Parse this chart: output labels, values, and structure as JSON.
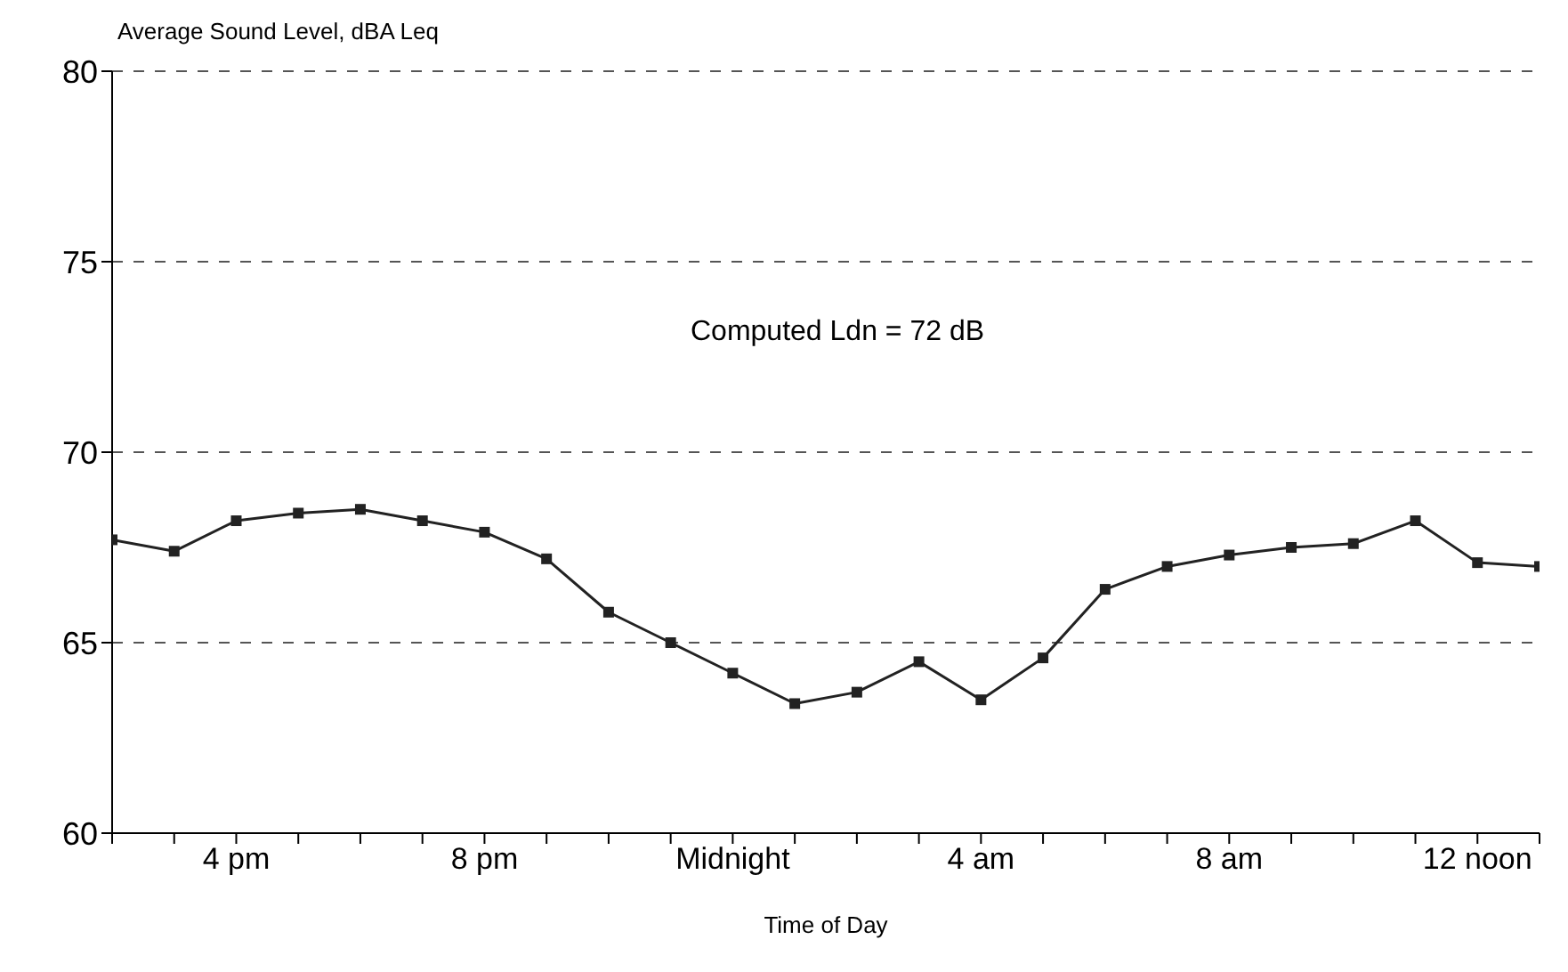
{
  "chart_data": {
    "type": "line",
    "ylabel": "Average Sound Level, dBA Leq",
    "xlabel": "Time of Day",
    "annotations": [
      "Computed Ldn = 72 dB"
    ],
    "categories": [
      null,
      null,
      "4 pm",
      null,
      null,
      null,
      "8 pm",
      null,
      null,
      null,
      "Midnight",
      null,
      null,
      null,
      "4 am",
      null,
      null,
      null,
      "8 am",
      null,
      null,
      null,
      "12 noon",
      null
    ],
    "series": [
      {
        "color": "#222222",
        "values": [
          67.7,
          67.4,
          68.2,
          68.4,
          68.5,
          68.2,
          67.9,
          67.2,
          65.8,
          65.0,
          64.2,
          63.4,
          63.7,
          64.5,
          63.5,
          64.6,
          66.4,
          67.0,
          67.3,
          67.5,
          67.6,
          68.2,
          67.1,
          67.0
        ]
      }
    ],
    "ylim": [
      60,
      80
    ],
    "yticks": [
      60,
      65,
      70,
      75,
      80
    ],
    "grid": "y",
    "marker": "square",
    "line_style": "solid"
  }
}
